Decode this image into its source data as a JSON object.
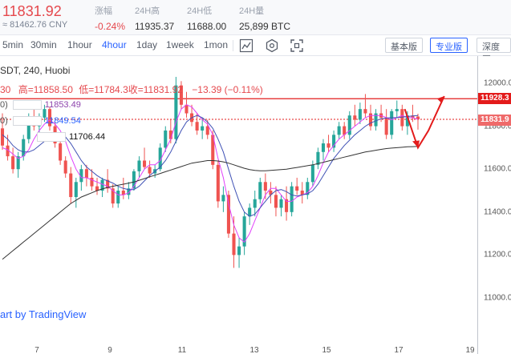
{
  "ticker": {
    "last_price": "11831.92",
    "cny": "≈ 81462.76 CNY",
    "change": {
      "label": "涨幅",
      "value": "-0.24%"
    },
    "high": {
      "label": "24H高",
      "value": "11935.37"
    },
    "low": {
      "label": "24H低",
      "value": "11688.00"
    },
    "volume": {
      "label": "24H量",
      "value": "25,899 BTC"
    }
  },
  "toolbar": {
    "timeframes": [
      "5min",
      "30min",
      "1hour",
      "4hour",
      "1day",
      "1week",
      "1mon"
    ],
    "active_timeframe": "4hour",
    "icons": [
      "candle-style-icon",
      "indicators-icon",
      "fullscreen-icon"
    ],
    "views": [
      "基本版",
      "专业版",
      "深度图"
    ],
    "active_view": "专业版"
  },
  "chart": {
    "legend": {
      "symbol": "SDT, 240, Huobi",
      "open_partial": "30",
      "high_label": "高=",
      "high": "11858.50",
      "low_label": "低=",
      "low": "11784.3",
      "close_label": "收=",
      "close": "11831.92",
      "change": "−13.39 (−0.11%)"
    },
    "ma_rows": [
      {
        "prefix": "0)",
        "value": "11853.49",
        "color": "#8e44ad"
      },
      {
        "prefix": "0)",
        "value": "11849.54",
        "color": "#2962ff"
      },
      {
        "prefix": "",
        "value": "11706.44",
        "color": "#111111"
      }
    ],
    "credit": "art by TradingView",
    "price_tags": {
      "upper": "11928.3",
      "current": "11831.9"
    },
    "colors": {
      "up": "#26a69a",
      "down": "#ef5350",
      "annotation": "#e31b1b",
      "ma_fast": "#e040fb",
      "ma_mid": "#3f51b5",
      "ma_slow": "#333333"
    }
  },
  "chart_data": {
    "type": "candlestick",
    "title": "SDT, 240, Huobi",
    "x_ticks": [
      "7",
      "9",
      "11",
      "13",
      "15",
      "17",
      "19"
    ],
    "y_ticks": [
      "12000.0",
      "11800.0",
      "11600.0",
      "11400.0",
      "11200.0",
      "11000.0"
    ],
    "ylim": [
      10890,
      12070
    ],
    "grid": false,
    "horizontal_lines": [
      {
        "label": "upper",
        "value": 11928.3,
        "style": "solid"
      },
      {
        "label": "current",
        "value": 11831.9,
        "style": "dotted"
      }
    ],
    "candles": [
      [
        11790,
        11860,
        11690,
        11710
      ],
      [
        11710,
        11760,
        11640,
        11660
      ],
      [
        11660,
        11700,
        11580,
        11600
      ],
      [
        11600,
        11680,
        11560,
        11660
      ],
      [
        11660,
        11760,
        11640,
        11740
      ],
      [
        11740,
        11860,
        11720,
        11840
      ],
      [
        11840,
        11880,
        11780,
        11800
      ],
      [
        11800,
        11860,
        11760,
        11840
      ],
      [
        11840,
        11900,
        11820,
        11880
      ],
      [
        11880,
        11890,
        11780,
        11800
      ],
      [
        11800,
        11820,
        11700,
        11720
      ],
      [
        11720,
        11740,
        11620,
        11640
      ],
      [
        11640,
        11660,
        11560,
        11580
      ],
      [
        11580,
        11610,
        11440,
        11470
      ],
      [
        11470,
        11560,
        11420,
        11540
      ],
      [
        11540,
        11620,
        11500,
        11600
      ],
      [
        11600,
        11620,
        11520,
        11560
      ],
      [
        11560,
        11600,
        11500,
        11520
      ],
      [
        11520,
        11560,
        11480,
        11500
      ],
      [
        11500,
        11560,
        11470,
        11550
      ],
      [
        11550,
        11600,
        11490,
        11510
      ],
      [
        11510,
        11530,
        11420,
        11440
      ],
      [
        11440,
        11520,
        11420,
        11500
      ],
      [
        11500,
        11560,
        11460,
        11480
      ],
      [
        11480,
        11540,
        11460,
        11510
      ],
      [
        11510,
        11600,
        11500,
        11590
      ],
      [
        11590,
        11660,
        11560,
        11640
      ],
      [
        11640,
        11700,
        11600,
        11610
      ],
      [
        11610,
        11640,
        11560,
        11580
      ],
      [
        11580,
        11620,
        11560,
        11600
      ],
      [
        11600,
        11720,
        11590,
        11700
      ],
      [
        11700,
        11800,
        11680,
        11780
      ],
      [
        11780,
        11830,
        11720,
        11740
      ],
      [
        11740,
        12030,
        11720,
        11990
      ],
      [
        11990,
        12010,
        11880,
        11900
      ],
      [
        11900,
        11960,
        11840,
        11860
      ],
      [
        11860,
        11900,
        11800,
        11820
      ],
      [
        11820,
        11860,
        11760,
        11780
      ],
      [
        11780,
        11840,
        11740,
        11800
      ],
      [
        11800,
        11830,
        11740,
        11760
      ],
      [
        11760,
        11780,
        11600,
        11620
      ],
      [
        11620,
        11640,
        11420,
        11450
      ],
      [
        11450,
        11520,
        11400,
        11480
      ],
      [
        11480,
        11500,
        11280,
        11300
      ],
      [
        11300,
        11380,
        11140,
        11200
      ],
      [
        11200,
        11280,
        11140,
        11240
      ],
      [
        11240,
        11400,
        11200,
        11380
      ],
      [
        11380,
        11440,
        11340,
        11420
      ],
      [
        11420,
        11500,
        11380,
        11460
      ],
      [
        11460,
        11560,
        11440,
        11540
      ],
      [
        11540,
        11580,
        11460,
        11500
      ],
      [
        11500,
        11540,
        11440,
        11480
      ],
      [
        11480,
        11520,
        11380,
        11420
      ],
      [
        11420,
        11480,
        11380,
        11460
      ],
      [
        11460,
        11520,
        11360,
        11400
      ],
      [
        11400,
        11540,
        11380,
        11520
      ],
      [
        11520,
        11560,
        11480,
        11500
      ],
      [
        11500,
        11540,
        11440,
        11480
      ],
      [
        11480,
        11560,
        11460,
        11540
      ],
      [
        11540,
        11640,
        11520,
        11620
      ],
      [
        11620,
        11700,
        11600,
        11680
      ],
      [
        11680,
        11740,
        11640,
        11720
      ],
      [
        11720,
        11760,
        11680,
        11700
      ],
      [
        11700,
        11780,
        11680,
        11760
      ],
      [
        11760,
        11820,
        11740,
        11800
      ],
      [
        11800,
        11820,
        11740,
        11760
      ],
      [
        11760,
        11870,
        11740,
        11850
      ],
      [
        11850,
        11900,
        11800,
        11830
      ],
      [
        11830,
        11910,
        11810,
        11880
      ],
      [
        11880,
        11950,
        11840,
        11860
      ],
      [
        11860,
        11900,
        11780,
        11800
      ],
      [
        11800,
        11880,
        11780,
        11860
      ],
      [
        11860,
        11900,
        11820,
        11840
      ],
      [
        11840,
        11880,
        11740,
        11760
      ],
      [
        11760,
        11880,
        11740,
        11870
      ],
      [
        11870,
        11920,
        11840,
        11880
      ],
      [
        11880,
        11900,
        11780,
        11800
      ],
      [
        11800,
        11870,
        11760,
        11850
      ],
      [
        11850,
        11900,
        11820,
        11840
      ],
      [
        11845,
        11858,
        11784,
        11832
      ]
    ],
    "series": [
      {
        "name": "",
        "values": [
          11700,
          11690,
          11670,
          11650,
          11660,
          11690,
          11740,
          11780,
          11810,
          11830,
          11810,
          11780,
          11730,
          11660,
          11600,
          11560,
          11560,
          11550,
          11540,
          11530,
          11520,
          11500,
          11480,
          11480,
          11490,
          11520,
          11560,
          11600,
          11620,
          11620,
          11640,
          11690,
          11740,
          11820,
          11880,
          11900,
          11890,
          11860,
          11830,
          11810,
          11760,
          11650,
          11560,
          11440,
          11340,
          11280,
          11260,
          11300,
          11360,
          11420,
          11480,
          11510,
          11510,
          11480,
          11450,
          11450,
          11470,
          11480,
          11490,
          11520,
          11570,
          11630,
          11680,
          11710,
          11740,
          11760,
          11780,
          11800,
          11820,
          11840,
          11850,
          11850,
          11850,
          11840,
          11830,
          11840,
          11850,
          11840,
          11840,
          11832
        ]
      },
      {
        "name": "",
        "values": [
          11760,
          11740,
          11710,
          11690,
          11680,
          11680,
          11690,
          11710,
          11730,
          11750,
          11770,
          11770,
          11750,
          11720,
          11680,
          11640,
          11610,
          11590,
          11570,
          11555,
          11545,
          11535,
          11520,
          11510,
          11505,
          11505,
          11520,
          11545,
          11570,
          11590,
          11610,
          11640,
          11680,
          11730,
          11780,
          11820,
          11840,
          11850,
          11840,
          11820,
          11790,
          11740,
          11680,
          11600,
          11520,
          11450,
          11400,
          11380,
          11390,
          11420,
          11450,
          11480,
          11500,
          11505,
          11495,
          11480,
          11475,
          11480,
          11485,
          11500,
          11530,
          11570,
          11610,
          11650,
          11680,
          11710,
          11735,
          11760,
          11780,
          11800,
          11815,
          11825,
          11835,
          11838,
          11840,
          11840,
          11842,
          11845,
          11848,
          11850
        ]
      },
      {
        "name": "",
        "values": [
          11180,
          11200,
          11220,
          11240,
          11260,
          11280,
          11300,
          11320,
          11340,
          11360,
          11380,
          11400,
          11420,
          11440,
          11455,
          11470,
          11480,
          11490,
          11500,
          11508,
          11515,
          11520,
          11525,
          11530,
          11535,
          11540,
          11548,
          11556,
          11564,
          11572,
          11580,
          11588,
          11596,
          11604,
          11612,
          11620,
          11628,
          11632,
          11636,
          11640,
          11640,
          11638,
          11634,
          11628,
          11620,
          11612,
          11604,
          11598,
          11594,
          11592,
          11592,
          11594,
          11596,
          11598,
          11600,
          11604,
          11608,
          11612,
          11616,
          11620,
          11626,
          11632,
          11638,
          11644,
          11650,
          11656,
          11662,
          11668,
          11674,
          11680,
          11684,
          11688,
          11692,
          11696,
          11698,
          11700,
          11702,
          11704,
          11705,
          11706
        ]
      }
    ],
    "annotations": [
      {
        "type": "arrow-path",
        "points": [
          [
            11880,
            76.5
          ],
          [
            11700,
            79.0
          ],
          [
            11780,
            81.0
          ],
          [
            11940,
            84.0
          ]
        ]
      }
    ]
  }
}
